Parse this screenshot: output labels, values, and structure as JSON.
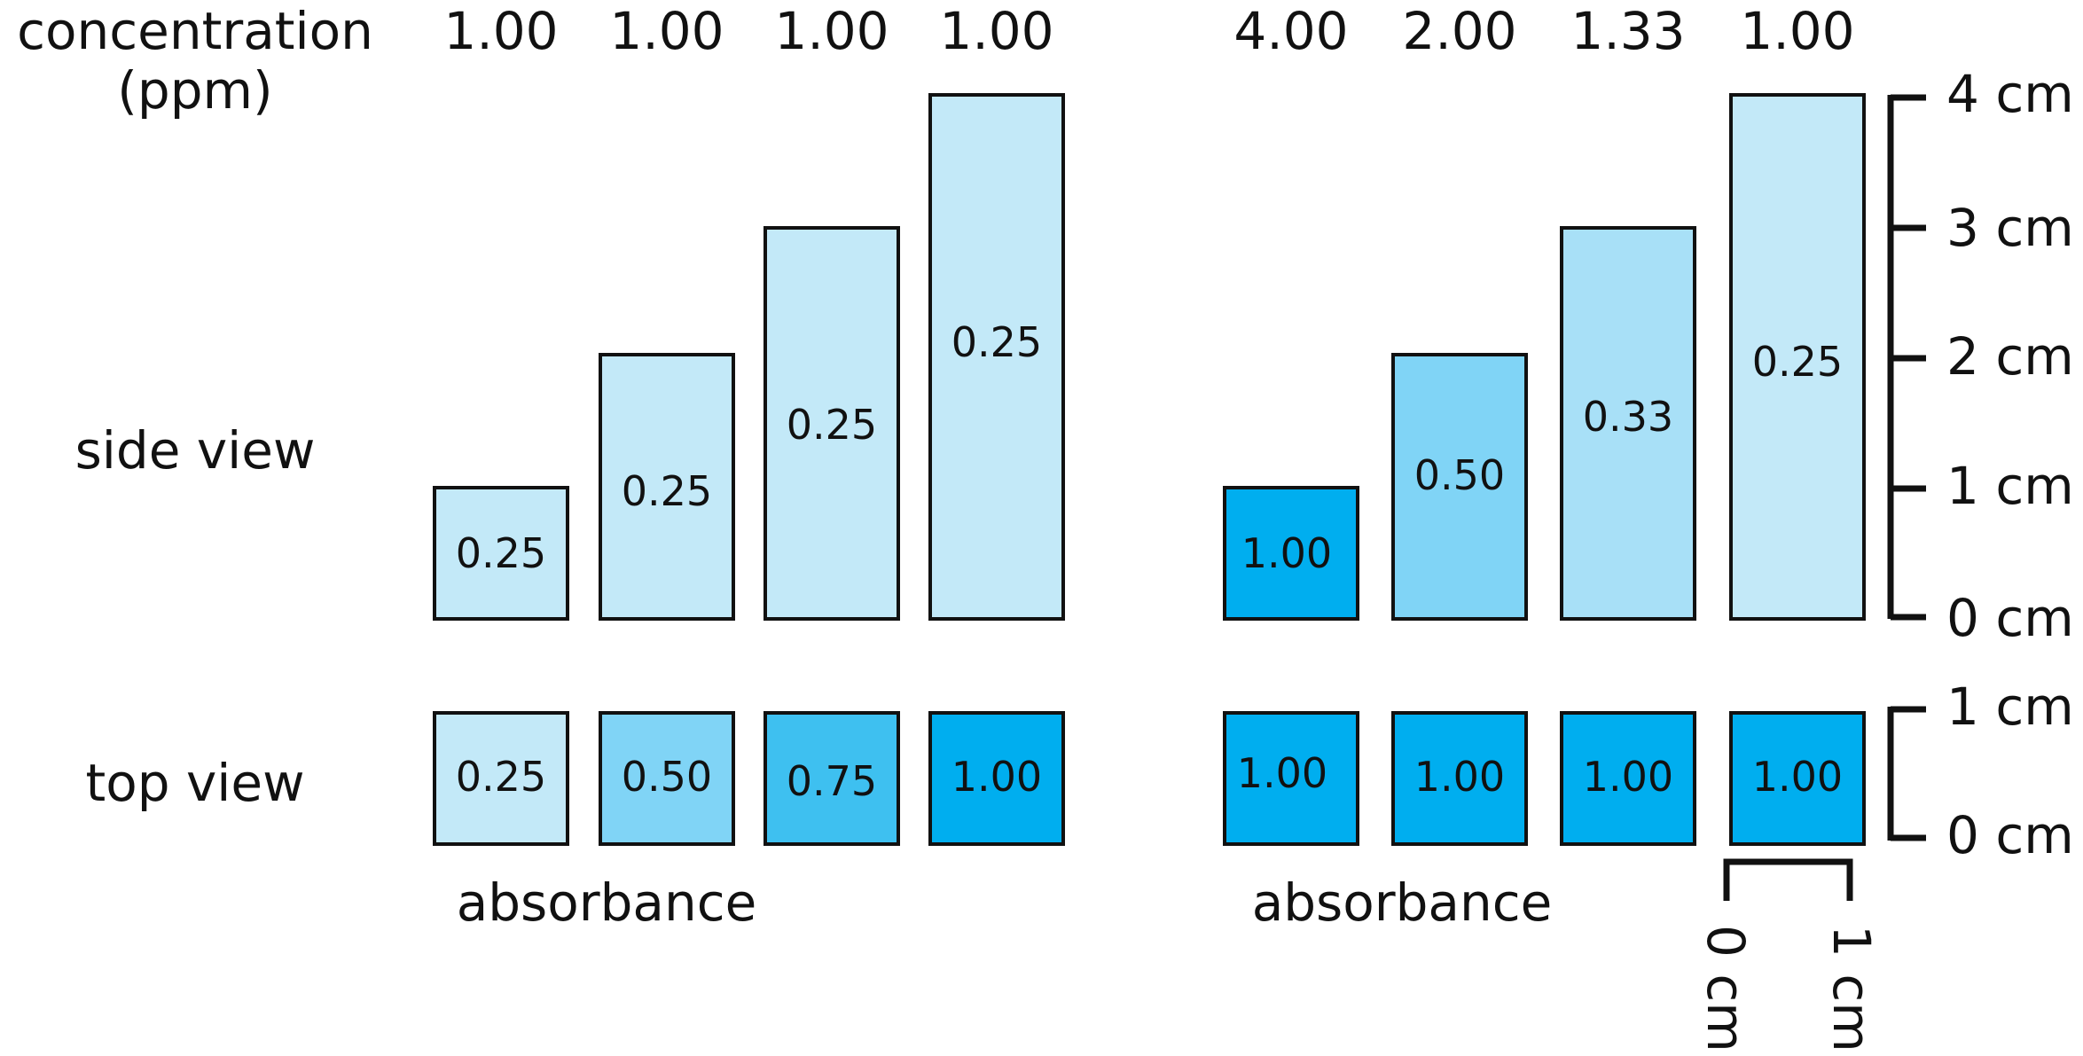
{
  "labels": {
    "concentration_line1": "concentration",
    "concentration_line2": "(ppm)",
    "side_view": "side view",
    "top_view": "top view",
    "absorbance_left": "absorbance",
    "absorbance_right": "absorbance"
  },
  "colors": {
    "very_light": "#c3e9f8",
    "light": "#a8e0f7",
    "medium_light": "#80d4f6",
    "medium": "#3ec0f0",
    "dark": "#00aeef",
    "stroke": "#111111"
  },
  "left_group": {
    "concentrations": [
      "1.00",
      "1.00",
      "1.00",
      "1.00"
    ],
    "side": [
      {
        "height_cm": 1,
        "absorbance": "0.25",
        "color": "#c3e9f8"
      },
      {
        "height_cm": 2,
        "absorbance": "0.25",
        "color": "#c3e9f8"
      },
      {
        "height_cm": 3,
        "absorbance": "0.25",
        "color": "#c3e9f8"
      },
      {
        "height_cm": 4,
        "absorbance": "0.25",
        "color": "#c3e9f8"
      }
    ],
    "top": [
      {
        "absorbance": "0.25",
        "color": "#c3e9f8"
      },
      {
        "absorbance": "0.50",
        "color": "#80d4f6"
      },
      {
        "absorbance": "0.75",
        "color": "#3ec0f0"
      },
      {
        "absorbance": "1.00",
        "color": "#00aeef"
      }
    ]
  },
  "right_group": {
    "concentrations": [
      "4.00",
      "2.00",
      "1.33",
      "1.00"
    ],
    "side": [
      {
        "height_cm": 1,
        "absorbance": "1.00",
        "color": "#00aeef"
      },
      {
        "height_cm": 2,
        "absorbance": "0.50",
        "color": "#80d4f6"
      },
      {
        "height_cm": 3,
        "absorbance": "0.33",
        "color": "#a8e0f7"
      },
      {
        "height_cm": 4,
        "absorbance": "0.25",
        "color": "#c3e9f8"
      }
    ],
    "top": [
      {
        "absorbance": "1.00",
        "color": "#00aeef"
      },
      {
        "absorbance": "1.00",
        "color": "#00aeef"
      },
      {
        "absorbance": "1.00",
        "color": "#00aeef"
      },
      {
        "absorbance": "1.00",
        "color": "#00aeef"
      }
    ]
  },
  "side_scale": {
    "ticks": [
      "0 cm",
      "1 cm",
      "2 cm",
      "3 cm",
      "4 cm"
    ]
  },
  "top_scale": {
    "ticks": [
      "0 cm",
      "1 cm"
    ]
  },
  "width_scale": {
    "ticks": [
      "0 cm",
      "1 cm"
    ]
  }
}
